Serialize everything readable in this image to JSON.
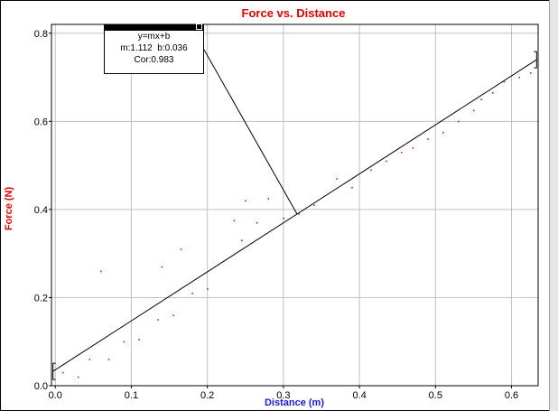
{
  "chart_data": {
    "type": "scatter",
    "title": "Force vs. Distance",
    "xlabel": "Distance (m)",
    "ylabel": "Force (N)",
    "xlim": [
      -0.005,
      0.635
    ],
    "ylim": [
      0.0,
      0.82
    ],
    "x_ticks": [
      "0.0",
      "0.1",
      "0.2",
      "0.3",
      "0.4",
      "0.5",
      "0.6"
    ],
    "x_tick_values": [
      0.0,
      0.1,
      0.2,
      0.3,
      0.4,
      0.5,
      0.6
    ],
    "y_ticks": [
      "0.0",
      "0.2",
      "0.4",
      "0.6",
      "0.8"
    ],
    "y_tick_values": [
      0.0,
      0.2,
      0.4,
      0.6,
      0.8
    ],
    "grid": true,
    "point_color": "#e00000",
    "fit_color": "#000000",
    "series": [
      {
        "points": [
          [
            0.01,
            0.03
          ],
          [
            0.03,
            0.02
          ],
          [
            0.045,
            0.06
          ],
          [
            0.06,
            0.26
          ],
          [
            0.07,
            0.06
          ],
          [
            0.09,
            0.1
          ],
          [
            0.11,
            0.105
          ],
          [
            0.135,
            0.15
          ],
          [
            0.14,
            0.27
          ],
          [
            0.155,
            0.16
          ],
          [
            0.165,
            0.31
          ],
          [
            0.18,
            0.21
          ],
          [
            0.2,
            0.22
          ],
          [
            0.235,
            0.375
          ],
          [
            0.245,
            0.33
          ],
          [
            0.25,
            0.42
          ],
          [
            0.265,
            0.37
          ],
          [
            0.28,
            0.425
          ],
          [
            0.3,
            0.38
          ],
          [
            0.32,
            0.39
          ],
          [
            0.34,
            0.41
          ],
          [
            0.37,
            0.47
          ],
          [
            0.39,
            0.45
          ],
          [
            0.415,
            0.49
          ],
          [
            0.435,
            0.51
          ],
          [
            0.455,
            0.53
          ],
          [
            0.47,
            0.54
          ],
          [
            0.49,
            0.56
          ],
          [
            0.51,
            0.575
          ],
          [
            0.53,
            0.6
          ],
          [
            0.55,
            0.625
          ],
          [
            0.56,
            0.65
          ],
          [
            0.575,
            0.665
          ],
          [
            0.59,
            0.69
          ],
          [
            0.61,
            0.7
          ],
          [
            0.625,
            0.71
          ]
        ]
      }
    ],
    "fit": {
      "equation": "y=mx+b",
      "m_text": "m:1.112",
      "b_text": "b:0.036",
      "cor_text": "Cor:0.983",
      "m": 1.112,
      "b": 0.036,
      "x_range": [
        -0.003,
        0.633
      ]
    }
  }
}
